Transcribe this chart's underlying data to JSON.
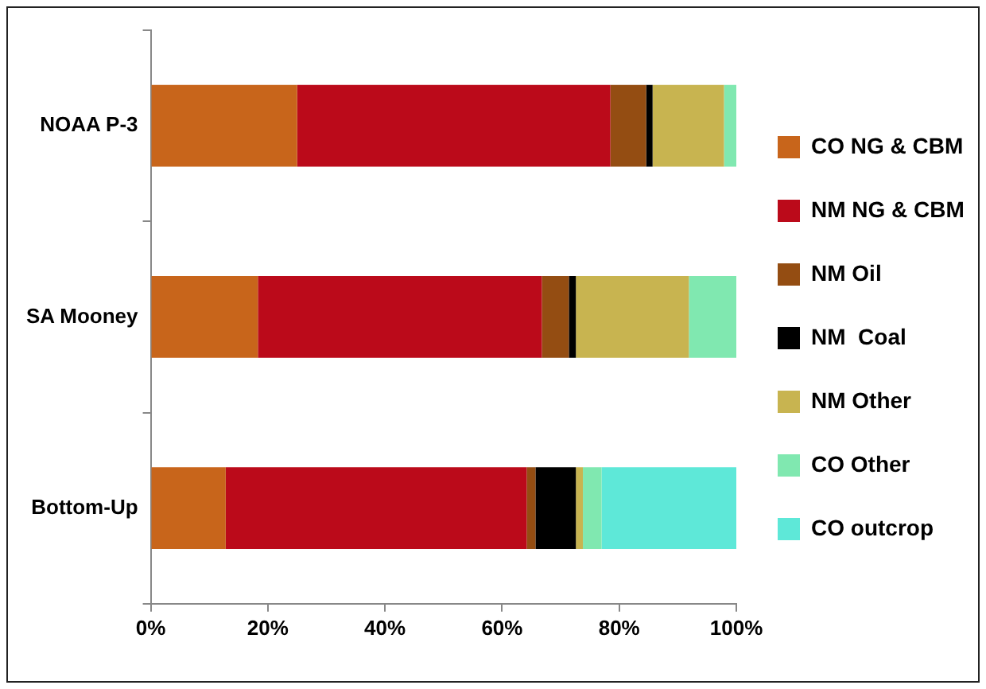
{
  "chart_data": {
    "type": "bar",
    "orientation": "horizontal",
    "stacked": true,
    "categories": [
      "NOAA P-3",
      "SA Mooney",
      "Bottom-Up"
    ],
    "series": [
      {
        "name": "CO NG & CBM",
        "color": "#c8651b",
        "values": [
          25,
          18.3,
          12.8
        ]
      },
      {
        "name": "NM NG & CBM",
        "color": "#bb0a1a",
        "values": [
          53.5,
          48.5,
          51.4
        ]
      },
      {
        "name": "NM Oil",
        "color": "#944d12",
        "values": [
          6.1,
          4.6,
          1.5
        ]
      },
      {
        "name": "NM  Coal",
        "color": "#000000",
        "values": [
          1.1,
          1.2,
          6.9
        ]
      },
      {
        "name": "NM Other",
        "color": "#c8b450",
        "values": [
          12.2,
          19.3,
          1.2
        ]
      },
      {
        "name": "CO Other",
        "color": "#80e8b0",
        "values": [
          2.1,
          8.1,
          3.2
        ]
      },
      {
        "name": "CO outcrop",
        "color": "#5ee8d8",
        "values": [
          0,
          0,
          23
        ]
      }
    ],
    "xlim": [
      0,
      100
    ],
    "xticks": [
      {
        "value": 0,
        "label": "0%"
      },
      {
        "value": 20,
        "label": "20%"
      },
      {
        "value": 40,
        "label": "40%"
      },
      {
        "value": 60,
        "label": "60%"
      },
      {
        "value": 80,
        "label": "80%"
      },
      {
        "value": 100,
        "label": "100%"
      }
    ],
    "grid": false,
    "legend": "right"
  }
}
